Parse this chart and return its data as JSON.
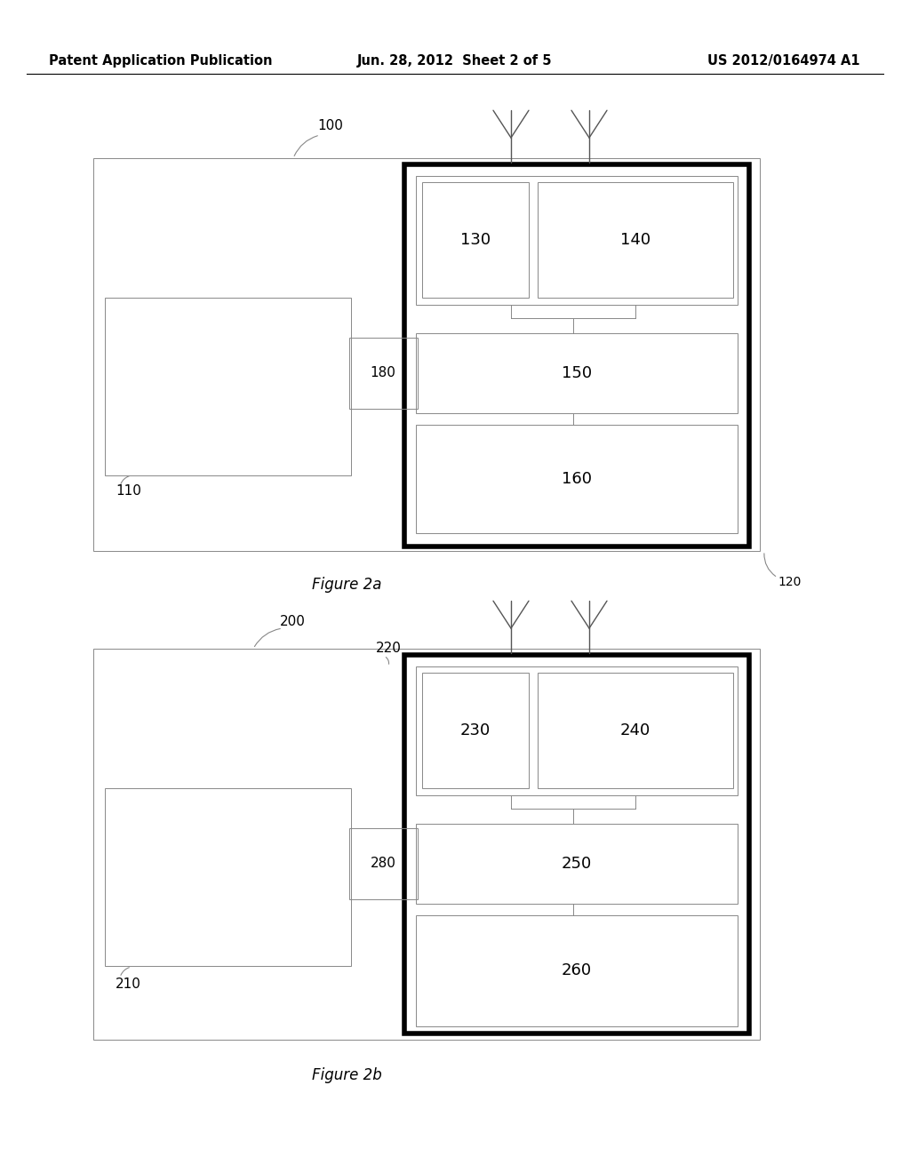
{
  "title_left": "Patent Application Publication",
  "title_center": "Jun. 28, 2012  Sheet 2 of 5",
  "title_right": "US 2012/0164974 A1",
  "fig2a_caption": "Figure 2a",
  "fig2b_caption": "Figure 2b",
  "background": "#ffffff",
  "line_color": "#000000",
  "gray_color": "#888888",
  "thin_line": 0.7,
  "thick_line": 4.0
}
